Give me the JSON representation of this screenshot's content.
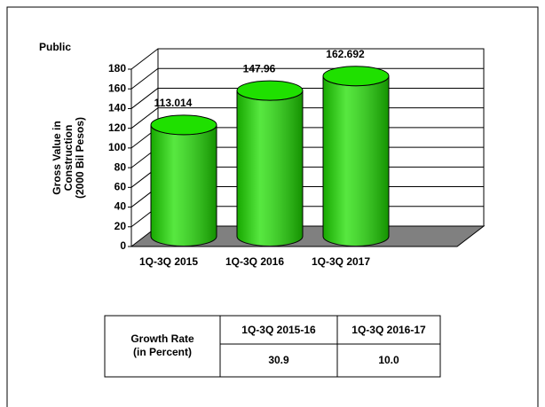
{
  "chart_data": {
    "type": "bar",
    "title": "Public",
    "ylabel": [
      "Gross Value in",
      "Construction",
      "(2000 Bil Pesos)"
    ],
    "categories": [
      "1Q-3Q 2015",
      "1Q-3Q 2016",
      "1Q-3Q 2017"
    ],
    "values": [
      113.014,
      147.96,
      162.692
    ],
    "color": "#1fe000",
    "ylim": [
      0,
      180
    ],
    "yticks": [
      0,
      20,
      40,
      60,
      80,
      100,
      120,
      140,
      160,
      180
    ],
    "grid": true
  },
  "table": {
    "row_header": [
      "Growth Rate",
      "(in Percent)"
    ],
    "columns": [
      "1Q-3Q 2015-16",
      "1Q-3Q 2016-17"
    ],
    "values": [
      "30.9",
      "10.0"
    ]
  }
}
